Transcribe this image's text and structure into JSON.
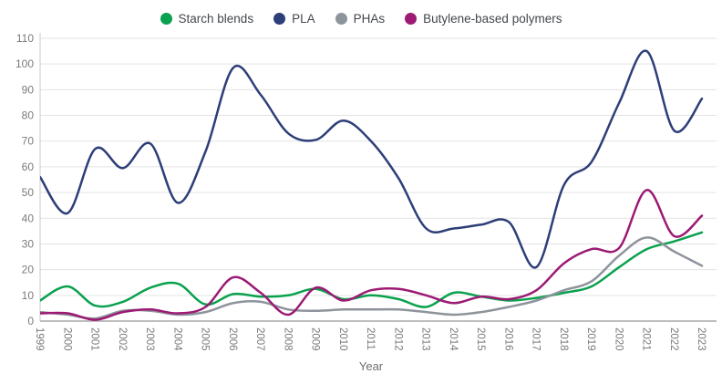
{
  "chart_data": {
    "type": "line",
    "title": "",
    "xlabel": "Year",
    "ylabel": "",
    "ylim": [
      0,
      110
    ],
    "grid": true,
    "legend_position": "top",
    "x": [
      1999,
      2000,
      2001,
      2002,
      2003,
      2004,
      2005,
      2006,
      2007,
      2008,
      2009,
      2010,
      2011,
      2012,
      2013,
      2014,
      2015,
      2016,
      2017,
      2018,
      2019,
      2020,
      2021,
      2022,
      2023
    ],
    "y_ticks": [
      0,
      10,
      20,
      30,
      40,
      50,
      60,
      70,
      80,
      90,
      100,
      110
    ],
    "series": [
      {
        "name": "Starch blends",
        "color": "#0aa14e",
        "values": [
          8,
          13.5,
          6,
          7.5,
          13,
          14.5,
          6.5,
          10.5,
          9.5,
          10,
          12.5,
          8.5,
          10,
          8.5,
          5.5,
          11,
          9.5,
          8,
          9,
          11,
          13.5,
          21,
          28,
          31,
          34.5
        ]
      },
      {
        "name": "PLA",
        "color": "#2d3e78",
        "values": [
          56,
          42,
          67,
          59.5,
          69,
          46,
          66,
          98.5,
          88,
          73,
          70.5,
          78,
          70,
          55.5,
          36,
          36,
          37.5,
          38.5,
          21,
          53,
          62,
          85,
          105,
          74,
          86.5
        ]
      },
      {
        "name": "PHAs",
        "color": "#8e949c",
        "values": [
          3.5,
          2.5,
          1,
          4,
          4,
          2.5,
          3.5,
          7,
          7.5,
          4.5,
          4,
          4.5,
          4.5,
          4.5,
          3.5,
          2.5,
          3.5,
          5.5,
          8,
          12,
          15.5,
          25.5,
          32.5,
          27,
          21.5
        ]
      },
      {
        "name": "Butylene-based polymers",
        "color": "#9c1a74",
        "values": [
          3,
          3,
          0.5,
          3.5,
          4.5,
          3,
          5.5,
          17,
          11,
          2.5,
          13,
          8,
          12,
          12.5,
          10,
          7,
          9.5,
          8.5,
          12,
          22.5,
          28,
          28.5,
          51,
          33,
          41
        ]
      }
    ]
  }
}
